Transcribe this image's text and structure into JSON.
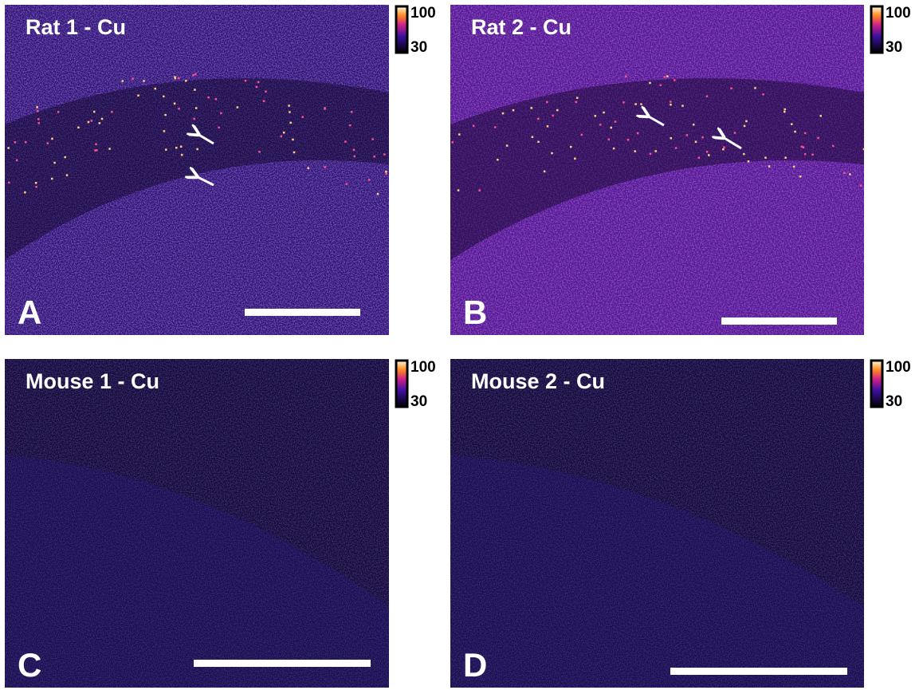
{
  "panels": [
    {
      "title": "Rat 1 - Cu",
      "letter": "A",
      "colorbar": {
        "max": 100,
        "min": 30
      }
    },
    {
      "title": "Rat 2 - Cu",
      "letter": "B",
      "colorbar": {
        "max": 100,
        "min": 30
      }
    },
    {
      "title": "Mouse 1 - Cu",
      "letter": "C",
      "colorbar": {
        "max": 100,
        "min": 30
      }
    },
    {
      "title": "Mouse 2 - Cu",
      "letter": "D",
      "colorbar": {
        "max": 100,
        "min": 30
      }
    }
  ]
}
